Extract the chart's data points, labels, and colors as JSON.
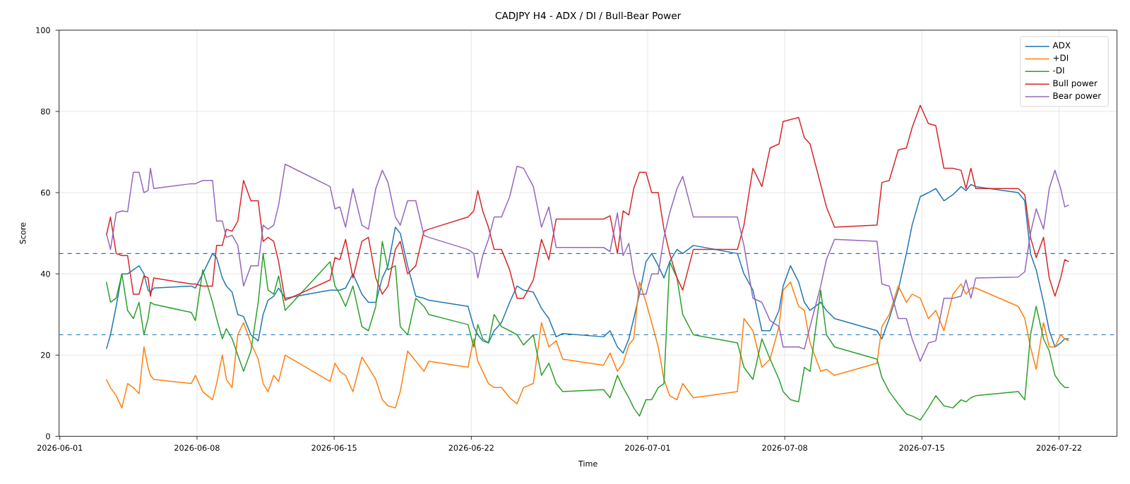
{
  "chart_data": {
    "type": "line",
    "title": "CADJPY H4 - ADX / DI / Bull-Bear Power",
    "xlabel": "Time",
    "ylabel": "Score",
    "x": [
      "2026-06-03T09:00",
      "2026-06-03T14:00",
      "2026-06-03T21:00",
      "2026-06-04T04:00",
      "2026-06-04T11:00",
      "2026-06-04T18:00",
      "2026-06-05T01:00",
      "2026-06-05T07:00",
      "2026-06-05T12:00",
      "2026-06-05T15:00",
      "2026-06-05T19:00",
      "2026-06-07T17:00",
      "2026-06-07T22:00",
      "2026-06-08T07:00",
      "2026-06-08T19:00",
      "2026-06-09T00:00",
      "2026-06-09T07:00",
      "2026-06-09T12:00",
      "2026-06-09T19:00",
      "2026-06-10T02:00",
      "2026-06-10T09:00",
      "2026-06-10T18:00",
      "2026-06-11T03:00",
      "2026-06-11T09:00",
      "2026-06-11T15:00",
      "2026-06-11T22:00",
      "2026-06-12T04:00",
      "2026-06-12T12:00",
      "2026-06-14T19:00",
      "2026-06-15T01:00",
      "2026-06-15T07:00",
      "2026-06-15T14:00",
      "2026-06-15T23:00",
      "2026-06-16T10:00",
      "2026-06-16T18:00",
      "2026-06-17T03:00",
      "2026-06-17T11:00",
      "2026-06-17T18:00",
      "2026-06-18T03:00",
      "2026-06-18T09:00",
      "2026-06-18T18:00",
      "2026-06-19T04:00",
      "2026-06-19T14:00",
      "2026-06-19T20:00",
      "2026-06-21T20:00",
      "2026-06-22T03:00",
      "2026-06-22T08:00",
      "2026-06-22T14:00",
      "2026-06-22T21:00",
      "2026-06-23T04:00",
      "2026-06-23T13:00",
      "2026-06-23T23:00",
      "2026-06-24T08:00",
      "2026-06-24T16:00",
      "2026-06-25T04:00",
      "2026-06-25T14:00",
      "2026-06-25T23:00",
      "2026-06-26T08:00",
      "2026-06-26T16:00",
      "2026-06-28T18:00",
      "2026-06-29T02:00",
      "2026-06-29T11:00",
      "2026-06-29T18:00",
      "2026-06-30T01:00",
      "2026-06-30T07:00",
      "2026-06-30T14:00",
      "2026-06-30T22:00",
      "2026-07-01T05:00",
      "2026-07-01T13:00",
      "2026-07-01T20:00",
      "2026-07-02T03:00",
      "2026-07-02T12:00",
      "2026-07-02T19:00",
      "2026-07-03T08:00",
      "2026-07-05T14:00",
      "2026-07-05T22:00",
      "2026-07-06T09:00",
      "2026-07-06T20:00",
      "2026-07-07T06:00",
      "2026-07-07T17:00",
      "2026-07-07T22:00",
      "2026-07-08T07:00",
      "2026-07-08T17:00",
      "2026-07-09T00:00",
      "2026-07-09T07:00",
      "2026-07-09T20:00",
      "2026-07-10T03:00",
      "2026-07-10T13:00",
      "2026-07-12T17:00",
      "2026-07-12T23:00",
      "2026-07-13T08:00",
      "2026-07-13T19:00",
      "2026-07-14T05:00",
      "2026-07-14T12:00",
      "2026-07-14T22:00",
      "2026-07-15T08:00",
      "2026-07-15T17:00",
      "2026-07-16T03:00",
      "2026-07-16T14:00",
      "2026-07-17T00:00",
      "2026-07-17T06:00",
      "2026-07-17T12:00",
      "2026-07-17T18:00",
      "2026-07-19T22:00",
      "2026-07-20T06:00",
      "2026-07-20T13:00",
      "2026-07-20T20:00",
      "2026-07-21T05:00",
      "2026-07-21T12:00",
      "2026-07-21T19:00",
      "2026-07-22T02:00",
      "2026-07-22T07:00",
      "2026-07-22T12:00"
    ],
    "series": [
      {
        "name": "ADX",
        "color": "#1f77b4",
        "values": [
          21.5,
          25,
          32,
          40,
          40,
          41,
          42,
          40,
          36,
          35.5,
          36.5,
          37,
          36.5,
          40,
          45,
          44,
          39,
          37,
          35.5,
          30,
          29.5,
          25,
          23.5,
          30,
          33.5,
          34.5,
          36.5,
          34,
          36,
          36,
          36,
          36.5,
          40,
          35,
          33,
          33,
          39,
          42,
          51.5,
          50,
          42,
          34.5,
          34,
          33.5,
          32,
          27,
          25,
          23.5,
          23,
          26,
          28,
          33,
          37,
          36,
          35.5,
          31.5,
          29,
          24.5,
          25.3,
          24.5,
          26,
          22,
          20.5,
          24,
          29,
          35,
          43,
          45,
          42,
          39,
          43,
          46,
          45,
          47,
          45,
          40,
          36,
          26,
          26,
          31,
          37,
          42,
          38,
          33,
          31,
          33,
          31,
          29,
          26,
          24,
          29,
          36,
          45,
          52,
          59,
          60,
          61,
          58,
          59.5,
          61.5,
          60.5,
          62,
          61.5,
          60,
          58,
          45,
          41,
          33,
          26,
          22,
          23,
          24,
          24
        ]
      },
      {
        "name": "+DI",
        "color": "#ff7f0e",
        "values": [
          14,
          12,
          10,
          7,
          13,
          12,
          10.5,
          22,
          17,
          15,
          14,
          13,
          15,
          11,
          9,
          13,
          20,
          14,
          12,
          25,
          28,
          23,
          19,
          13,
          11,
          15,
          13.5,
          20,
          13.5,
          18,
          16,
          15,
          11,
          19.5,
          17,
          14,
          9,
          7.5,
          7,
          11,
          21,
          18.5,
          16,
          18.5,
          17,
          24,
          18.5,
          16,
          13,
          12,
          12,
          9.5,
          8,
          12,
          13,
          28,
          22,
          23.5,
          19,
          17.5,
          20.5,
          16,
          18,
          22.5,
          24,
          38,
          33,
          28,
          22,
          14,
          10,
          9,
          13,
          9.5,
          11,
          29,
          26,
          17,
          19,
          27,
          36,
          38,
          32,
          31,
          23,
          16,
          16.5,
          15,
          18,
          27,
          30,
          37,
          33,
          35,
          34,
          29,
          31,
          26,
          35,
          37.5,
          35,
          36.5,
          36.5,
          32,
          29,
          22,
          16.5,
          28,
          22,
          22,
          25,
          24,
          23.5
        ]
      },
      {
        "name": "-DI",
        "color": "#2ca02c",
        "values": [
          38,
          33,
          34,
          40,
          31,
          29,
          33,
          25,
          29,
          33,
          32.5,
          30.5,
          28.5,
          41,
          33,
          29,
          24,
          26.5,
          24,
          20,
          16,
          21,
          33,
          45,
          36,
          35,
          39.5,
          31,
          43,
          37,
          35,
          32,
          37,
          27,
          26,
          32,
          48,
          41,
          42,
          27,
          25,
          34,
          32,
          30,
          27.5,
          22,
          27.5,
          24,
          23,
          30,
          27,
          26,
          25,
          22.5,
          25,
          15,
          18,
          13,
          11,
          11.5,
          9.5,
          15,
          12,
          9.5,
          7,
          5,
          9,
          9,
          12,
          13,
          43,
          39,
          30,
          25,
          23,
          17,
          14,
          24,
          19,
          14,
          11,
          9,
          8.5,
          17,
          16,
          36,
          25,
          22,
          19,
          14.5,
          11,
          8,
          5.5,
          5,
          4,
          7,
          10,
          7.5,
          7,
          9,
          8.5,
          9.5,
          10,
          11,
          9,
          25,
          32,
          24,
          21,
          15,
          13,
          12,
          12
        ]
      },
      {
        "name": "Bull power",
        "color": "#d62728",
        "values": [
          49.5,
          54,
          45,
          44.5,
          44.5,
          35,
          35,
          39.5,
          39,
          34.5,
          39,
          37.5,
          37.5,
          37,
          37,
          47,
          47,
          51,
          50.5,
          53,
          63,
          58,
          58,
          48,
          49,
          48,
          43,
          33.5,
          38.5,
          44,
          43.5,
          48.5,
          39,
          48,
          49,
          39,
          35,
          37,
          46,
          48,
          40,
          42,
          50.5,
          51,
          54,
          55.5,
          60.5,
          55.5,
          51.5,
          46,
          46,
          41,
          34,
          34,
          38.5,
          48.5,
          43.5,
          53.5,
          53.5,
          53.5,
          54.3,
          45,
          55.5,
          54.5,
          61,
          65,
          65,
          60,
          60,
          51,
          45,
          39,
          36,
          46,
          46,
          52,
          66,
          61.5,
          71,
          72,
          77.5,
          78,
          78.5,
          73.5,
          72,
          62,
          56.5,
          51.5,
          52,
          62.5,
          63,
          70.5,
          71,
          76,
          81.5,
          77,
          76.5,
          66,
          66,
          65.5,
          61,
          66,
          61,
          61,
          59.5,
          49,
          44,
          49,
          39,
          34.5,
          39,
          43.5,
          43
        ]
      },
      {
        "name": "Bear power",
        "color": "#9467bd",
        "values": [
          50,
          46,
          55,
          55.5,
          55.3,
          65,
          65,
          60,
          60.5,
          66,
          61,
          62.2,
          62.2,
          63,
          63,
          53,
          53,
          49,
          49.5,
          47,
          37,
          42,
          42,
          52,
          51,
          52,
          57,
          67,
          61.5,
          56,
          56.5,
          51.5,
          61,
          52,
          51,
          61,
          65.5,
          62.5,
          54,
          52,
          58,
          58,
          49.5,
          49,
          46,
          45,
          39,
          44.5,
          48.5,
          54,
          54,
          59,
          66.5,
          66,
          61.5,
          51.5,
          56.5,
          46.5,
          46.5,
          46.5,
          45.5,
          55,
          44.5,
          47.5,
          40,
          35,
          35,
          40,
          40,
          49,
          55,
          61,
          64,
          54,
          54,
          47,
          34,
          33,
          28.5,
          27,
          22,
          22,
          22,
          21.5,
          27,
          37,
          43.5,
          48.5,
          48,
          37.5,
          37,
          29,
          29,
          24,
          18.5,
          23,
          23.5,
          34,
          34,
          34.5,
          38.5,
          34,
          39,
          39.2,
          40.5,
          50,
          56,
          51,
          61,
          65.5,
          61,
          56.5,
          57
        ]
      }
    ],
    "xlim": [
      "2026-05-31T23:00",
      "2026-07-24T23:00"
    ],
    "xticks": [
      "2026-06-01",
      "2026-06-08",
      "2026-06-15",
      "2026-06-22",
      "2026-07-01",
      "2026-07-08",
      "2026-07-15",
      "2026-07-22"
    ],
    "ylim": [
      0,
      100
    ],
    "yticks": [
      0,
      20,
      40,
      60,
      80,
      100
    ],
    "ref_lines": [
      {
        "axis": "y",
        "value": 45,
        "color": "#1f77b4",
        "line_style": "dashed"
      },
      {
        "axis": "y",
        "value": 25,
        "color": "#1f77b4",
        "line_style": "dashed"
      }
    ],
    "grid": true,
    "legend": "top right"
  }
}
